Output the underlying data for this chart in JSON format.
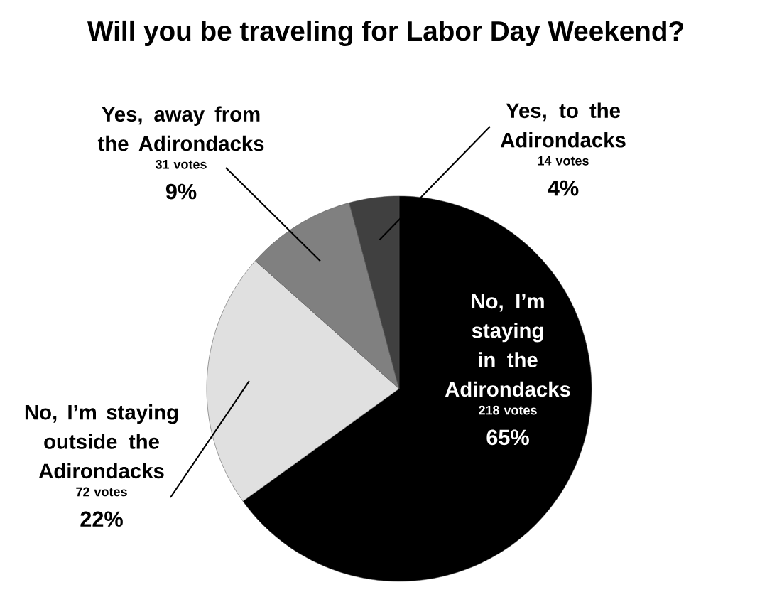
{
  "chart_data": {
    "type": "pie",
    "title": "Will you be traveling for Labor Day Weekend?",
    "categories": [
      "No, I’m staying in the Adirondacks",
      "No, I’m staying outside the Adirondacks",
      "Yes, away from the Adirondacks",
      "Yes, to the Adirondacks"
    ],
    "values": [
      218,
      72,
      31,
      14
    ],
    "colors": [
      "#000000",
      "#e0e0e0",
      "#808080",
      "#404040"
    ],
    "value_labels": [
      "218 votes",
      "72 votes",
      "31 votes",
      "14 votes"
    ],
    "annotations": [
      "65%",
      "22%",
      "9%",
      "4%"
    ]
  }
}
